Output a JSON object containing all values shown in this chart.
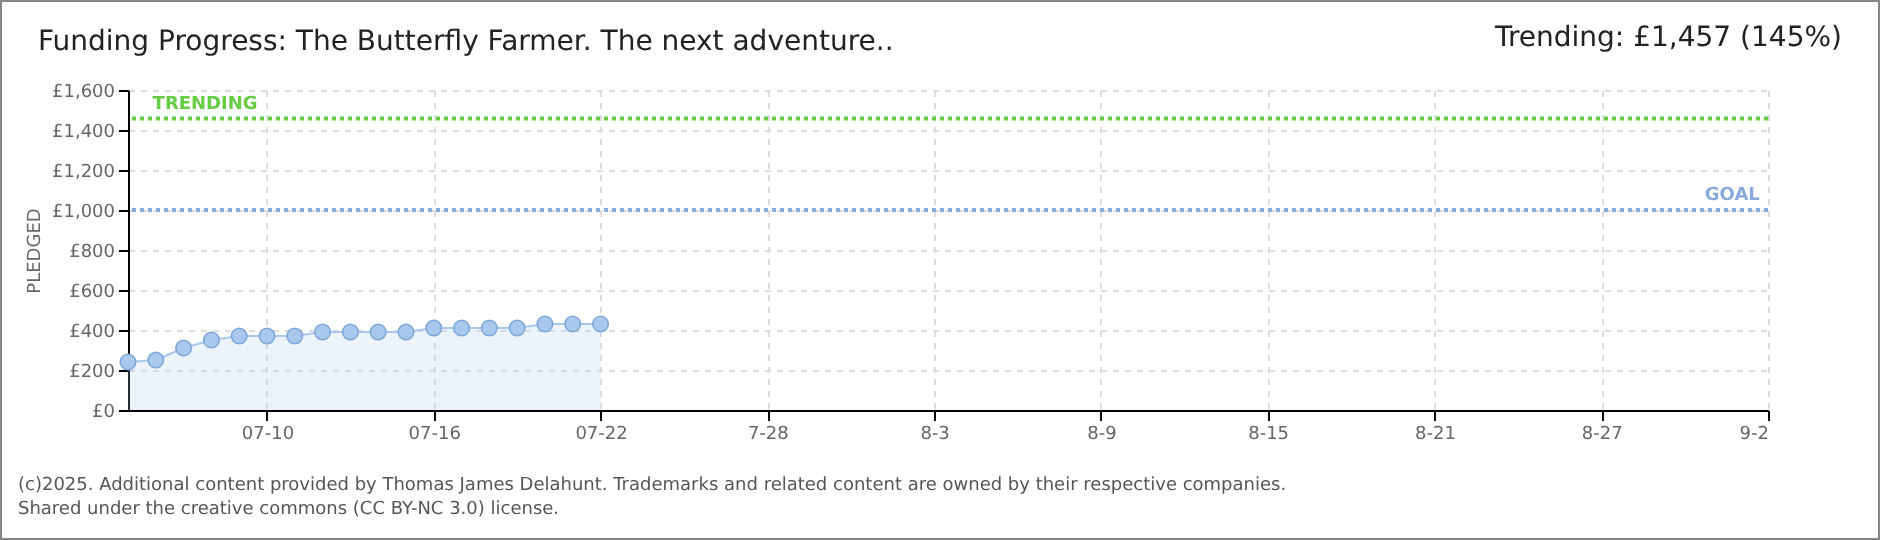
{
  "chart_data": {
    "type": "area",
    "title": "Funding Progress: The Butterfly Farmer. The next adventure..",
    "ylabel": "PLEDGED",
    "annotations": [
      "Trending:  £1,457 (145%)",
      "(c)2025. Additional content provided by Thomas James Delahunt. Trademarks and related content are owned by their respective companies.",
      "Shared under the creative commons (CC BY-NC 3.0) license."
    ],
    "x": [
      "--07-05",
      "--07-06",
      "--07-07",
      "--07-08",
      "--07-09",
      "--07-10",
      "--07-11",
      "--07-12",
      "--07-13",
      "--07-14",
      "--07-15",
      "--07-16",
      "--07-17",
      "--07-18",
      "--07-19",
      "--07-20",
      "--07-21",
      "--07-22"
    ],
    "series": [
      {
        "color": "#a8c8ee",
        "values": [
          240,
          250,
          310,
          350,
          370,
          370,
          370,
          390,
          390,
          390,
          390,
          410,
          410,
          410,
          410,
          430,
          430,
          430
        ]
      }
    ],
    "xlim": [
      "--07-05",
      "--09-02"
    ],
    "xticks": [
      {
        "value": "--07-10",
        "label": "07-10"
      },
      {
        "value": "--07-16",
        "label": "07-16"
      },
      {
        "value": "--07-22",
        "label": "07-22"
      },
      {
        "value": "--07-28",
        "label": "7-28"
      },
      {
        "value": "--08-03",
        "label": "8-3"
      },
      {
        "value": "--08-09",
        "label": "8-9"
      },
      {
        "value": "--08-15",
        "label": "8-15"
      },
      {
        "value": "--08-21",
        "label": "8-21"
      },
      {
        "value": "--08-27",
        "label": "8-27"
      },
      {
        "value": "--09-02",
        "label": "9-2"
      }
    ],
    "ylim": [
      0,
      1600
    ],
    "yticks": [
      {
        "value": 0,
        "label": "£0"
      },
      {
        "value": 200,
        "label": "£200"
      },
      {
        "value": 400,
        "label": "£400"
      },
      {
        "value": 600,
        "label": "£600"
      },
      {
        "value": 800,
        "label": "£800"
      },
      {
        "value": 1000,
        "label": "£1,000"
      },
      {
        "value": 1200,
        "label": "£1,200"
      },
      {
        "value": 1400,
        "label": "£1,400"
      },
      {
        "value": 1600,
        "label": "£1,600"
      }
    ],
    "ref_lines": [
      {
        "axis": "y",
        "value": 1457,
        "label": "TRENDING",
        "color": "#66cc44",
        "line_style": "dotted"
      },
      {
        "axis": "y",
        "value": 1000,
        "label": "GOAL",
        "color": "#88aadd",
        "line_style": "dotted"
      }
    ],
    "grid": true,
    "marker": "circle"
  }
}
